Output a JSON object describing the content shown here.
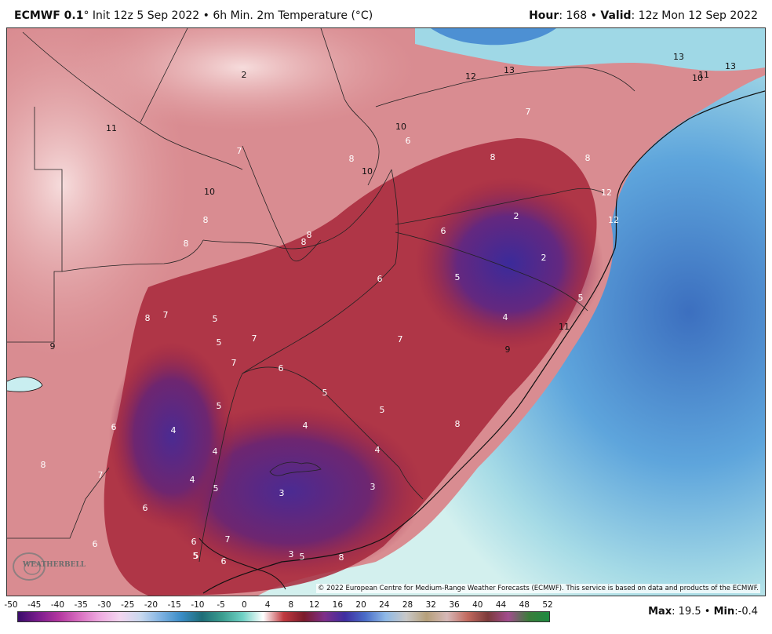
{
  "header": {
    "model": "ECMWF 0.1",
    "degree": "°",
    "init_text": "Init 12z 5 Sep 2022",
    "bullet": "•",
    "product": "6h Min. 2m Temperature (°C)",
    "hour_label": "Hour",
    "hour_value": ": 168",
    "valid_label": "Valid",
    "valid_value": ": 12z Mon 12 Sep 2022"
  },
  "map": {
    "copyright": "© 2022 European Centre for Medium-Range Weather Forecasts (ECMWF). This service is based on data and products of the ECMWF.",
    "logo_text": "WEATHERBELL",
    "colors": {
      "warm_pink": "#f2c6c6",
      "red": "#c0454f",
      "dark_red": "#a22237",
      "purple": "#5a2a8c",
      "ocean_light": "#bfe9ea",
      "ocean_blue": "#5ea5dc",
      "ocean_deep": "#3c6fbf"
    },
    "labels": [
      {
        "t": "2",
        "c": "k"
      },
      {
        "t": "12",
        "c": "k"
      },
      {
        "t": "13",
        "c": "k"
      },
      {
        "t": "13",
        "c": "k"
      },
      {
        "t": "10",
        "c": "k"
      },
      {
        "t": "11",
        "c": "k"
      },
      {
        "t": "13",
        "c": "k"
      },
      {
        "t": "11",
        "c": "k"
      },
      {
        "t": "10",
        "c": "k"
      },
      {
        "t": "7",
        "c": "w"
      },
      {
        "t": "7",
        "c": "w"
      },
      {
        "t": "6",
        "c": "w"
      },
      {
        "t": "8",
        "c": "w"
      },
      {
        "t": "8",
        "c": "w"
      },
      {
        "t": "8",
        "c": "w"
      },
      {
        "t": "10",
        "c": "k"
      },
      {
        "t": "10",
        "c": "k"
      },
      {
        "t": "8",
        "c": "w"
      },
      {
        "t": "8",
        "c": "w"
      },
      {
        "t": "8",
        "c": "w"
      },
      {
        "t": "8",
        "c": "w"
      },
      {
        "t": "2",
        "c": "w"
      },
      {
        "t": "6",
        "c": "w"
      },
      {
        "t": "12",
        "c": "w"
      },
      {
        "t": "12",
        "c": "w"
      },
      {
        "t": "2",
        "c": "w"
      },
      {
        "t": "6",
        "c": "w"
      },
      {
        "t": "5",
        "c": "w"
      },
      {
        "t": "5",
        "c": "w"
      },
      {
        "t": "4",
        "c": "w"
      },
      {
        "t": "8",
        "c": "w"
      },
      {
        "t": "7",
        "c": "w"
      },
      {
        "t": "5",
        "c": "w"
      },
      {
        "t": "9",
        "c": "k"
      },
      {
        "t": "5",
        "c": "w"
      },
      {
        "t": "7",
        "c": "w"
      },
      {
        "t": "7",
        "c": "w"
      },
      {
        "t": "7",
        "c": "w"
      },
      {
        "t": "11",
        "c": "k"
      },
      {
        "t": "9",
        "c": "k"
      },
      {
        "t": "6",
        "c": "w"
      },
      {
        "t": "5",
        "c": "w"
      },
      {
        "t": "5",
        "c": "w"
      },
      {
        "t": "5",
        "c": "w"
      },
      {
        "t": "6",
        "c": "w"
      },
      {
        "t": "4",
        "c": "w"
      },
      {
        "t": "4",
        "c": "w"
      },
      {
        "t": "4",
        "c": "w"
      },
      {
        "t": "8",
        "c": "w"
      },
      {
        "t": "8",
        "c": "w"
      },
      {
        "t": "7",
        "c": "w"
      },
      {
        "t": "4",
        "c": "w"
      },
      {
        "t": "4",
        "c": "w"
      },
      {
        "t": "5",
        "c": "w"
      },
      {
        "t": "3",
        "c": "w"
      },
      {
        "t": "3",
        "c": "w"
      },
      {
        "t": "6",
        "c": "w"
      },
      {
        "t": "6",
        "c": "w"
      },
      {
        "t": "7",
        "c": "w"
      },
      {
        "t": "6",
        "c": "w"
      },
      {
        "t": "5",
        "c": "w"
      },
      {
        "t": "3",
        "c": "w"
      },
      {
        "t": "5",
        "c": "w"
      },
      {
        "t": "8",
        "c": "w"
      },
      {
        "t": "5",
        "c": "w"
      },
      {
        "t": "6",
        "c": "w"
      }
    ]
  },
  "legend": {
    "ticks": [
      "-50",
      "-45",
      "-40",
      "-35",
      "-30",
      "-25",
      "-20",
      "-15",
      "-10",
      "-5",
      "0",
      "4",
      "8",
      "12",
      "16",
      "20",
      "24",
      "28",
      "32",
      "36",
      "40",
      "44",
      "48",
      "52"
    ],
    "gradient_colors": [
      "#3a0d6b",
      "#7b1d8d",
      "#b3379f",
      "#d86fc0",
      "#eeaae0",
      "#f3d6f0",
      "#c9d9ef",
      "#7fb2e2",
      "#3a8cc6",
      "#1e6d78",
      "#3b9d8f",
      "#6fd1c5",
      "#ffffff",
      "#c0393f",
      "#7b1c2b",
      "#7e2f89",
      "#3f2ea0",
      "#4a6dc8",
      "#8fb9e6",
      "#c8c8c8",
      "#b6a07a",
      "#d6b8b8",
      "#c26a5f",
      "#7c3b3b",
      "#a24d8e",
      "#3b7c3b",
      "#1d8a40"
    ],
    "max_label": "Max",
    "max_value": ": 19.5",
    "bullet": "•",
    "min_label": "Min",
    "min_value": ":-0.4"
  }
}
